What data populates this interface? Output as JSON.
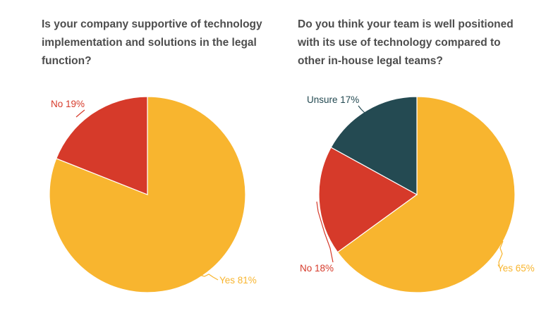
{
  "chart_data": [
    {
      "type": "pie",
      "title": "Is your company supportive of technology implementation and solutions in the legal function?",
      "slices": [
        {
          "label": "Yes",
          "value": 81,
          "display": "Yes 81%",
          "color": "#f8b52f",
          "label_color": "#f8b52f"
        },
        {
          "label": "No",
          "value": 19,
          "display": "No 19%",
          "color": "#d63a2a",
          "label_color": "#d63a2a"
        }
      ],
      "legend": "none"
    },
    {
      "type": "pie",
      "title": "Do you think your team is well positioned with its use of technology compared to other in-house legal teams?",
      "slices": [
        {
          "label": "Yes",
          "value": 65,
          "display": "Yes 65%",
          "color": "#f8b52f",
          "label_color": "#f8b52f"
        },
        {
          "label": "No",
          "value": 18,
          "display": "No 18%",
          "color": "#d63a2a",
          "label_color": "#d63a2a"
        },
        {
          "label": "Unsure",
          "value": 17,
          "display": "Unsure 17%",
          "color": "#244a52",
          "label_color": "#244a52"
        }
      ],
      "legend": "none"
    }
  ]
}
